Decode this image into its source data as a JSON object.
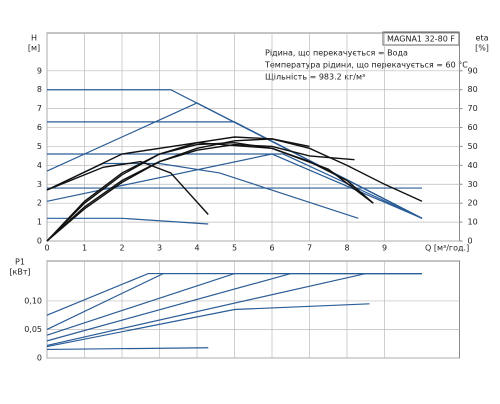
{
  "chart_data": [
    {
      "type": "line",
      "title": "MAGNA1 32-80 F",
      "annotations": [
        "Рідина, що перекачується = Вода",
        "Температура рідини, що перекачується = 60 °C",
        "Щільність = 983.2 кг/м³"
      ],
      "y_label": "H",
      "y_unit": "[м]",
      "y2_label": "eta",
      "y2_unit": "[%]",
      "x_label": "Q [м³/год.]",
      "xlim": [
        0,
        11
      ],
      "xticks": [
        0,
        1,
        2,
        3,
        4,
        5,
        6,
        7,
        8,
        9
      ],
      "ylim": [
        0,
        11
      ],
      "yticks": [
        0,
        1,
        2,
        3,
        4,
        5,
        6,
        7,
        8,
        9
      ],
      "y2lim": [
        0,
        110
      ],
      "y2ticks": [
        0,
        10,
        20,
        30,
        40,
        50,
        60,
        70,
        80,
        90
      ],
      "grid": true,
      "series": [
        {
          "color": "#2b5d97",
          "x": [
            0,
            3.3,
            10
          ],
          "values": [
            8,
            8,
            1.2
          ]
        },
        {
          "color": "#2b5d97",
          "x": [
            0,
            5,
            10
          ],
          "values": [
            6.3,
            6.3,
            1.2
          ]
        },
        {
          "color": "#2b5d97",
          "x": [
            0,
            6.3,
            10
          ],
          "values": [
            4.6,
            4.6,
            1.2
          ]
        },
        {
          "color": "#2b5d97",
          "x": [
            0,
            10
          ],
          "values": [
            2.8,
            2.8
          ]
        },
        {
          "color": "#2b5d97",
          "x": [
            0,
            4,
            10
          ],
          "values": [
            3.7,
            7.3,
            1.2
          ]
        },
        {
          "color": "#2b5d97",
          "x": [
            0,
            6,
            10
          ],
          "values": [
            2.1,
            4.6,
            1.2
          ]
        },
        {
          "color": "#2b5d97",
          "x": [
            0,
            2,
            4.3
          ],
          "values": [
            1.2,
            1.2,
            0.9
          ]
        },
        {
          "color": "#2b5d97",
          "x": [
            0,
            1.5,
            3,
            4.6,
            8.3
          ],
          "values": [
            2.7,
            4.1,
            4.1,
            3.6,
            1.2
          ]
        },
        {
          "color": "#111111",
          "x": [
            0,
            1.5,
            2.5,
            3.3,
            4.3
          ],
          "values": [
            2.7,
            3.9,
            4.2,
            3.6,
            1.4
          ]
        },
        {
          "color": "#111111",
          "x": [
            0,
            2,
            4,
            6,
            7.5,
            8.7
          ],
          "values": [
            2.7,
            4.6,
            5.2,
            4.9,
            3.8,
            2.0
          ]
        },
        {
          "color": "#111111",
          "axis": "y2",
          "x": [
            0,
            1,
            2,
            3,
            4,
            5,
            6,
            7,
            8,
            9,
            10
          ],
          "values": [
            0,
            20,
            35,
            46,
            52,
            55,
            54,
            49,
            40,
            30,
            21
          ]
        },
        {
          "color": "#111111",
          "axis": "y2",
          "x": [
            0,
            1,
            2,
            3,
            4,
            5,
            6,
            7,
            8,
            8.7
          ],
          "values": [
            0,
            21,
            36,
            46,
            51,
            52,
            49,
            42,
            32,
            20
          ]
        },
        {
          "color": "#111111",
          "axis": "y2",
          "x": [
            0,
            1,
            2,
            3,
            4,
            5,
            6,
            7,
            8.2
          ],
          "values": [
            0,
            18,
            32,
            42,
            48,
            51,
            50,
            45,
            43
          ]
        },
        {
          "color": "#111111",
          "axis": "y2",
          "x": [
            0,
            1,
            2,
            3,
            4,
            5,
            6,
            7
          ],
          "values": [
            0,
            17,
            31,
            42,
            49,
            53,
            54,
            50
          ]
        }
      ]
    },
    {
      "type": "line",
      "y_label": "P1",
      "y_unit": "[кВт]",
      "xlim": [
        0,
        11
      ],
      "ylim": [
        0,
        0.17
      ],
      "yticks": [
        0,
        {
          "value": 0.05,
          "label": "0,05"
        },
        {
          "value": 0.1,
          "label": "0,10"
        }
      ],
      "grid": true,
      "series": [
        {
          "color": "#2b5d97",
          "x": [
            0,
            2.7,
            10
          ],
          "values": [
            0.075,
            0.148,
            0.148
          ]
        },
        {
          "color": "#2b5d97",
          "x": [
            0,
            3.1,
            10
          ],
          "values": [
            0.05,
            0.148,
            0.148
          ]
        },
        {
          "color": "#2b5d97",
          "x": [
            0,
            5,
            10
          ],
          "values": [
            0.04,
            0.148,
            0.148
          ]
        },
        {
          "color": "#2b5d97",
          "x": [
            0,
            6.5,
            10
          ],
          "values": [
            0.03,
            0.148,
            0.148
          ]
        },
        {
          "color": "#2b5d97",
          "x": [
            0,
            8.5,
            10
          ],
          "values": [
            0.022,
            0.148,
            0.148
          ]
        },
        {
          "color": "#2b5d97",
          "x": [
            0,
            5,
            8.6
          ],
          "values": [
            0.02,
            0.085,
            0.095
          ]
        },
        {
          "color": "#2b5d97",
          "x": [
            0,
            4.3
          ],
          "values": [
            0.015,
            0.018
          ]
        }
      ]
    }
  ]
}
